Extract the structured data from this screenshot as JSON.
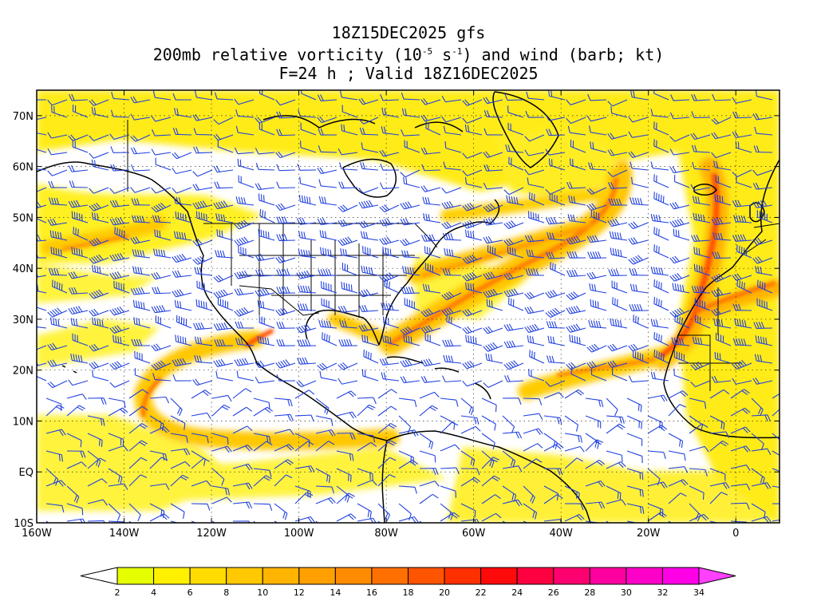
{
  "title": {
    "line1": "18Z15DEC2025 gfs",
    "line2_pre": "200mb relative vorticity (10",
    "line2_exp1": "-5",
    "line2_mid": " s",
    "line2_exp2": "-1",
    "line2_post": ") and wind (barb; kt)",
    "line3": "F=24 h ; Valid 18Z16DEC2025"
  },
  "map": {
    "lon_range": [
      -160,
      10
    ],
    "lat_range": [
      -10,
      75
    ],
    "lat_labels": [
      "10S",
      "EQ",
      "10N",
      "20N",
      "30N",
      "40N",
      "50N",
      "60N",
      "70N"
    ],
    "lat_values": [
      -10,
      0,
      10,
      20,
      30,
      40,
      50,
      60,
      70
    ],
    "lon_labels": [
      "160W",
      "140W",
      "120W",
      "100W",
      "80W",
      "60W",
      "40W",
      "20W",
      "0"
    ],
    "lon_values": [
      -160,
      -140,
      -120,
      -100,
      -80,
      -60,
      -40,
      -20,
      0
    ],
    "barb_color": "#2040e0"
  },
  "colorbar": {
    "ticks": [
      "2",
      "4",
      "6",
      "8",
      "10",
      "12",
      "14",
      "16",
      "18",
      "20",
      "22",
      "24",
      "26",
      "28",
      "30",
      "32",
      "34"
    ],
    "colors": [
      "#e6ff00",
      "#fff000",
      "#ffdc00",
      "#ffc800",
      "#ffb400",
      "#ffa000",
      "#ff8c00",
      "#ff7000",
      "#ff5400",
      "#ff3000",
      "#ff0a0a",
      "#ff0040",
      "#ff0070",
      "#ff00a0",
      "#ff00c8",
      "#ff00e6"
    ],
    "end_color": "#ff40ff"
  }
}
